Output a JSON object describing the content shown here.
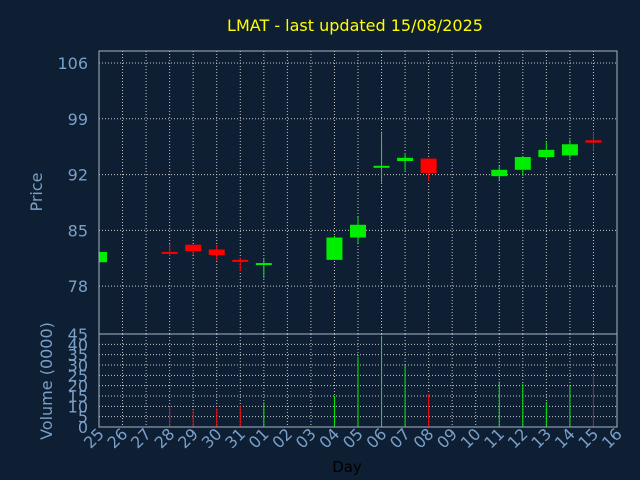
{
  "chart_data": {
    "type": "candlestick",
    "title": "LMAT - last updated 15/08/2025",
    "xlabel": "Day",
    "price_panel": {
      "ylabel": "Price",
      "yticks": [
        78,
        85,
        92,
        99,
        106
      ],
      "ylim": [
        72,
        107.5
      ]
    },
    "volume_panel": {
      "ylabel": "Volume (0000)",
      "yticks": [
        0,
        5,
        10,
        15,
        20,
        25,
        30,
        35,
        40,
        45
      ],
      "ylim": [
        0,
        45
      ]
    },
    "x_tick_labels": [
      "25",
      "26",
      "27",
      "28",
      "29",
      "30",
      "31",
      "01",
      "02",
      "03",
      "04",
      "05",
      "06",
      "07",
      "08",
      "09",
      "10",
      "11",
      "12",
      "13",
      "14",
      "15",
      "16"
    ],
    "grid": true,
    "colors": {
      "background": "#0e1e33",
      "up": "#00ee00",
      "down": "#ff0000",
      "title": "#ffff00",
      "axis_text": "#7aa0c8",
      "grid": "#c8c8c8"
    },
    "candles": [
      {
        "day": "25",
        "open": 81.0,
        "high": 82.5,
        "low": 81.0,
        "close": 82.3,
        "volume": 0
      },
      {
        "day": "28",
        "open": 82.3,
        "high": 83.3,
        "low": 81.8,
        "close": 82.2,
        "volume": 10
      },
      {
        "day": "29",
        "open": 83.2,
        "high": 83.2,
        "low": 81.9,
        "close": 82.4,
        "volume": 8
      },
      {
        "day": "30",
        "open": 82.6,
        "high": 83.2,
        "low": 81.2,
        "close": 81.9,
        "volume": 9
      },
      {
        "day": "31",
        "open": 81.3,
        "high": 81.5,
        "low": 79.9,
        "close": 81.2,
        "volume": 10
      },
      {
        "day": "01",
        "open": 80.7,
        "high": 81.4,
        "low": 79.0,
        "close": 80.9,
        "volume": 12
      },
      {
        "day": "04",
        "open": 81.3,
        "high": 84.3,
        "low": 81.3,
        "close": 84.1,
        "volume": 15
      },
      {
        "day": "05",
        "open": 84.1,
        "high": 86.7,
        "low": 83.4,
        "close": 85.7,
        "volume": 34
      },
      {
        "day": "06",
        "open": 92.9,
        "high": 97.4,
        "low": 91.0,
        "close": 93.1,
        "volume": 44
      },
      {
        "day": "07",
        "open": 93.7,
        "high": 94.7,
        "low": 92.5,
        "close": 94.1,
        "volume": 30
      },
      {
        "day": "08",
        "open": 94.0,
        "high": 94.0,
        "low": 91.2,
        "close": 92.2,
        "volume": 16
      },
      {
        "day": "11",
        "open": 91.8,
        "high": 93.1,
        "low": 91.3,
        "close": 92.6,
        "volume": 22
      },
      {
        "day": "12",
        "open": 92.6,
        "high": 94.3,
        "low": 91.8,
        "close": 94.2,
        "volume": 21
      },
      {
        "day": "13",
        "open": 94.2,
        "high": 96.2,
        "low": 94.0,
        "close": 95.1,
        "volume": 12
      },
      {
        "day": "14",
        "open": 94.4,
        "high": 96.4,
        "low": 94.0,
        "close": 95.8,
        "volume": 20
      },
      {
        "day": "15",
        "open": 96.3,
        "high": 97.4,
        "low": 95.0,
        "close": 96.0,
        "volume": 26
      }
    ]
  }
}
